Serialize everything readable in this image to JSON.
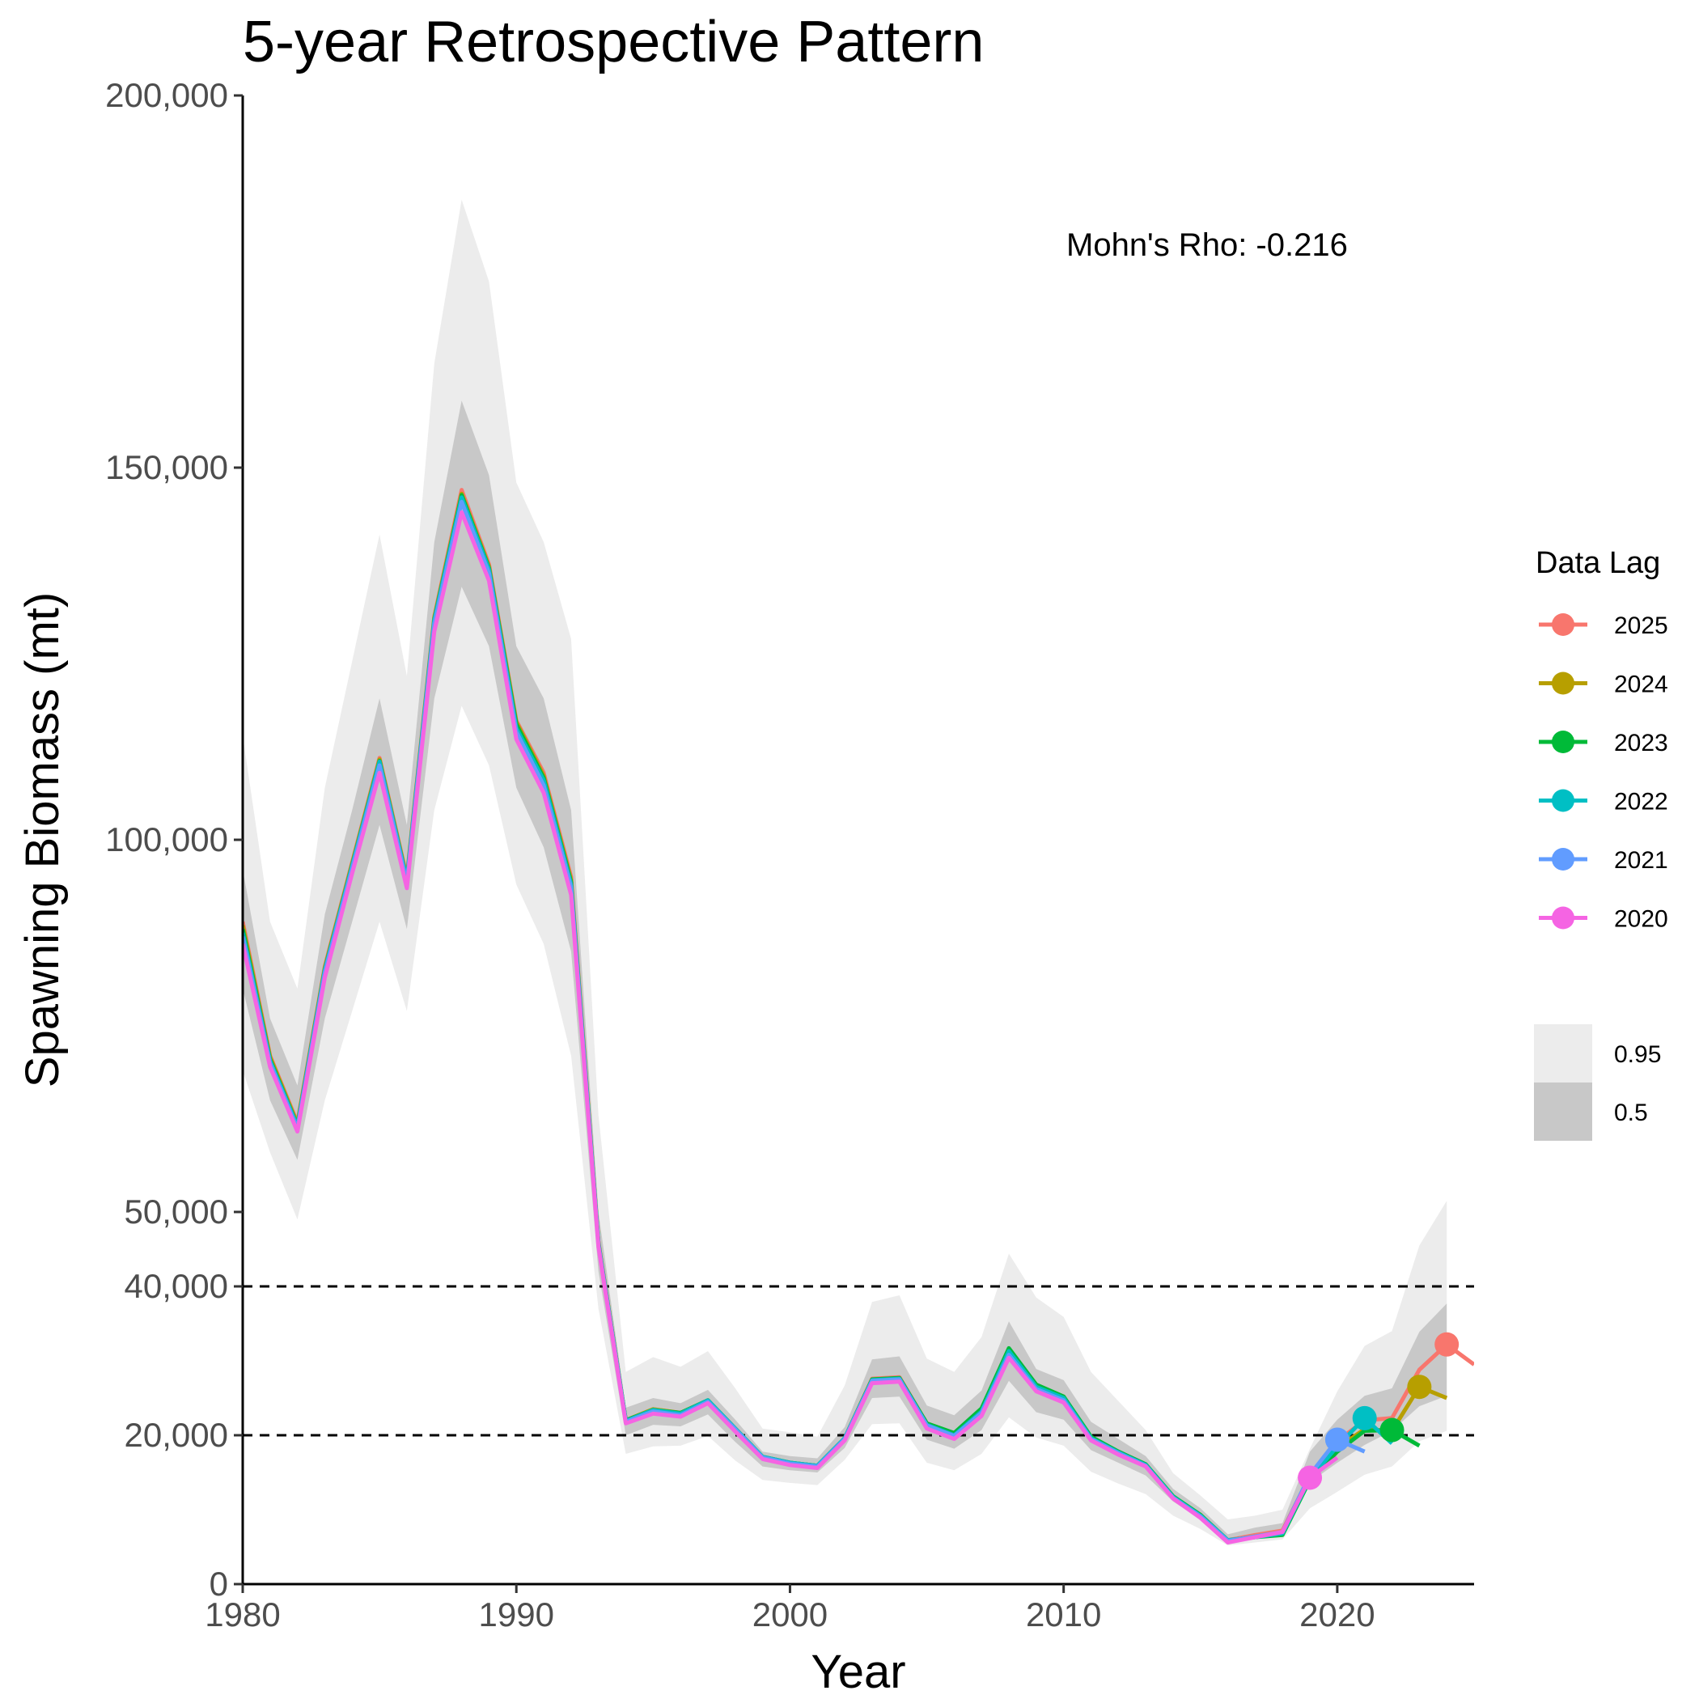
{
  "chart_data": {
    "type": "line",
    "title": "5-year Retrospective Pattern",
    "xlabel": "Year",
    "ylabel": "Spawning Biomass (mt)",
    "xlim": [
      1980,
      2025
    ],
    "ylim": [
      0,
      200000
    ],
    "x_ticks": [
      1980,
      1990,
      2000,
      2010,
      2020
    ],
    "x_tick_labels": [
      "1980",
      "1990",
      "2000",
      "2010",
      "2020"
    ],
    "y_ticks": [
      0,
      20000,
      40000,
      50000,
      100000,
      150000,
      200000
    ],
    "y_tick_labels": [
      "0",
      "20,000",
      "40,000",
      "50,000",
      "100,000",
      "150,000",
      "200,000"
    ],
    "reference_lines": [
      20000,
      40000
    ],
    "annotation": "Mohn's Rho: -0.216",
    "legend": {
      "title": "Data Lag",
      "band_labels": [
        "0.95",
        "0.5"
      ]
    },
    "band_colors": {
      "0.95": "#ececec",
      "0.5": "#c8c8c8"
    },
    "band_years": [
      1980,
      1981,
      1982,
      1983,
      1984,
      1985,
      1986,
      1987,
      1988,
      1989,
      1990,
      1991,
      1992,
      1993,
      1994,
      1995,
      1996,
      1997,
      1998,
      1999,
      2000,
      2001,
      2002,
      2003,
      2004,
      2005,
      2006,
      2007,
      2008,
      2009,
      2010,
      2011,
      2012,
      2013,
      2014,
      2015,
      2016,
      2017,
      2018,
      2019,
      2020,
      2021,
      2022,
      2023,
      2024
    ],
    "band_95_lower": [
      69000,
      58000,
      49000,
      65000,
      77000,
      89000,
      77000,
      104000,
      118000,
      110000,
      94000,
      86000,
      71000,
      37000,
      17500,
      18500,
      18600,
      19900,
      16600,
      14000,
      13600,
      13300,
      16700,
      21500,
      21600,
      16300,
      15300,
      17500,
      22400,
      19700,
      18600,
      15100,
      13500,
      12100,
      9200,
      7400,
      5200,
      5600,
      6000,
      10200,
      12400,
      14700,
      15800,
      19200,
      20600
    ],
    "band_95_upper": [
      114000,
      89000,
      80000,
      107000,
      124000,
      141000,
      122000,
      164000,
      186000,
      175000,
      148000,
      140000,
      127000,
      63000,
      28500,
      30500,
      29200,
      31300,
      26300,
      20900,
      20400,
      19800,
      26700,
      37900,
      38800,
      30300,
      28500,
      33200,
      44400,
      38500,
      35900,
      28500,
      24600,
      20700,
      14900,
      11900,
      8700,
      9200,
      10000,
      18200,
      25900,
      32000,
      34000,
      45500,
      51500
    ],
    "band_50_lower": [
      80000,
      65000,
      57000,
      76000,
      89000,
      102000,
      88000,
      119000,
      134000,
      126000,
      107000,
      99000,
      85000,
      42000,
      20000,
      21400,
      21200,
      22800,
      19100,
      15800,
      15300,
      15000,
      18300,
      25000,
      25200,
      19400,
      18200,
      20700,
      27300,
      23100,
      22100,
      18000,
      16300,
      14600,
      11100,
      8700,
      6000,
      6600,
      7100,
      13700,
      16300,
      18700,
      20600,
      23900,
      25300
    ],
    "band_50_upper": [
      96000,
      76000,
      67000,
      90000,
      104000,
      119000,
      102000,
      140000,
      159000,
      149000,
      126000,
      119000,
      104000,
      50000,
      23700,
      25000,
      24300,
      26100,
      22100,
      17800,
      17200,
      16900,
      21100,
      30200,
      30600,
      24000,
      22700,
      26000,
      35300,
      28900,
      27400,
      21800,
      19500,
      17200,
      12800,
      10200,
      6700,
      7600,
      8200,
      17800,
      22100,
      25300,
      26300,
      33900,
      37700
    ],
    "series": [
      {
        "name": "2025",
        "color": "#F8766D",
        "x": [
          1980,
          1981,
          1982,
          1983,
          1984,
          1985,
          1986,
          1987,
          1988,
          1989,
          1990,
          1991,
          1992,
          1993,
          1994,
          1995,
          1996,
          1997,
          1998,
          1999,
          2000,
          2001,
          2002,
          2003,
          2004,
          2005,
          2006,
          2007,
          2008,
          2009,
          2010,
          2011,
          2012,
          2013,
          2014,
          2015,
          2016,
          2017,
          2018,
          2019,
          2020,
          2021,
          2022,
          2023,
          2024,
          2025
        ],
        "y": [
          89000,
          71000,
          62000,
          83000,
          97000,
          111000,
          95000,
          130000,
          147000,
          137000,
          116000,
          109000,
          95000,
          46000,
          22000,
          23500,
          23000,
          24700,
          20900,
          17100,
          16300,
          15900,
          19600,
          27600,
          27800,
          21600,
          20200,
          23300,
          31100,
          26400,
          24900,
          19700,
          17800,
          16100,
          11700,
          9300,
          5900,
          6600,
          7200,
          14600,
          19200,
          22000,
          22300,
          28800,
          32200,
          29500
        ],
        "marker_year": 2024,
        "marker_value": 32200
      },
      {
        "name": "2024",
        "color": "#B79F00",
        "x": [
          1980,
          1981,
          1982,
          1983,
          1984,
          1985,
          1986,
          1987,
          1988,
          1989,
          1990,
          1991,
          1992,
          1993,
          1994,
          1995,
          1996,
          1997,
          1998,
          1999,
          2000,
          2001,
          2002,
          2003,
          2004,
          2005,
          2006,
          2007,
          2008,
          2009,
          2010,
          2011,
          2012,
          2013,
          2014,
          2015,
          2016,
          2017,
          2018,
          2019,
          2020,
          2021,
          2022,
          2023,
          2024
        ],
        "y": [
          88500,
          70800,
          61800,
          82800,
          96800,
          110800,
          94800,
          129800,
          146500,
          136700,
          115800,
          108600,
          94600,
          45900,
          22000,
          23500,
          23000,
          24700,
          20900,
          17100,
          16300,
          15900,
          19600,
          27500,
          27700,
          21500,
          20100,
          23200,
          31000,
          26300,
          24800,
          19600,
          17700,
          16000,
          11700,
          9300,
          5800,
          6400,
          6900,
          14300,
          18300,
          20800,
          20600,
          26500,
          25000
        ],
        "marker_year": 2023,
        "marker_value": 26500
      },
      {
        "name": "2023",
        "color": "#00BA38",
        "x": [
          1980,
          1981,
          1982,
          1983,
          1984,
          1985,
          1986,
          1987,
          1988,
          1989,
          1990,
          1991,
          1992,
          1993,
          1994,
          1995,
          1996,
          1997,
          1998,
          1999,
          2000,
          2001,
          2002,
          2003,
          2004,
          2005,
          2006,
          2007,
          2008,
          2009,
          2010,
          2011,
          2012,
          2013,
          2014,
          2015,
          2016,
          2017,
          2018,
          2019,
          2020,
          2021,
          2022,
          2023
        ],
        "y": [
          88000,
          70500,
          61600,
          82600,
          96600,
          110600,
          94600,
          129600,
          146300,
          136500,
          115500,
          108300,
          94300,
          45800,
          22000,
          23400,
          23000,
          24700,
          20900,
          17100,
          16300,
          15900,
          19600,
          27500,
          27700,
          21600,
          20300,
          23600,
          31700,
          26800,
          25200,
          19800,
          17800,
          16100,
          11800,
          9300,
          5900,
          6300,
          6600,
          14000,
          17800,
          20600,
          20700,
          18600
        ],
        "marker_year": 2022,
        "marker_value": 20700
      },
      {
        "name": "2022",
        "color": "#00BFC4",
        "x": [
          1980,
          1981,
          1982,
          1983,
          1984,
          1985,
          1986,
          1987,
          1988,
          1989,
          1990,
          1991,
          1992,
          1993,
          1994,
          1995,
          1996,
          1997,
          1998,
          1999,
          2000,
          2001,
          2002,
          2003,
          2004,
          2005,
          2006,
          2007,
          2008,
          2009,
          2010,
          2011,
          2012,
          2013,
          2014,
          2015,
          2016,
          2017,
          2018,
          2019,
          2020,
          2021,
          2022
        ],
        "y": [
          87500,
          70300,
          61500,
          82500,
          96500,
          110500,
          94500,
          129500,
          146000,
          136300,
          115000,
          108000,
          94000,
          45700,
          21900,
          23400,
          22900,
          24700,
          20900,
          17100,
          16300,
          15900,
          19600,
          27400,
          27600,
          21400,
          20000,
          23200,
          31300,
          26500,
          25000,
          19600,
          17700,
          16000,
          11700,
          9200,
          5900,
          6300,
          6800,
          14200,
          18500,
          22300,
          18900
        ],
        "marker_year": 2021,
        "marker_value": 22300
      },
      {
        "name": "2021",
        "color": "#619CFF",
        "x": [
          1980,
          1981,
          1982,
          1983,
          1984,
          1985,
          1986,
          1987,
          1988,
          1989,
          1990,
          1991,
          1992,
          1993,
          1994,
          1995,
          1996,
          1997,
          1998,
          1999,
          2000,
          2001,
          2002,
          2003,
          2004,
          2005,
          2006,
          2007,
          2008,
          2009,
          2010,
          2011,
          2012,
          2013,
          2014,
          2015,
          2016,
          2017,
          2018,
          2019,
          2020,
          2021
        ],
        "y": [
          87000,
          70000,
          61200,
          82200,
          96200,
          110000,
          94200,
          129000,
          145400,
          135800,
          114500,
          107300,
          93600,
          45600,
          21800,
          23200,
          22700,
          24500,
          20800,
          17000,
          16200,
          15800,
          19500,
          27300,
          27500,
          21300,
          19900,
          23000,
          30800,
          26200,
          24700,
          19500,
          17600,
          15900,
          11600,
          9100,
          5800,
          6400,
          7000,
          14700,
          19400,
          17800
        ],
        "marker_year": 2020,
        "marker_value": 19400
      },
      {
        "name": "2020",
        "color": "#F564E3",
        "x": [
          1980,
          1981,
          1982,
          1983,
          1984,
          1985,
          1986,
          1987,
          1988,
          1989,
          1990,
          1991,
          1992,
          1993,
          1994,
          1995,
          1996,
          1997,
          1998,
          1999,
          2000,
          2001,
          2002,
          2003,
          2004,
          2005,
          2006,
          2007,
          2008,
          2009,
          2010,
          2011,
          2012,
          2013,
          2014,
          2015,
          2016,
          2017,
          2018,
          2019,
          2020
        ],
        "y": [
          86000,
          69500,
          60800,
          81500,
          95500,
          109000,
          93500,
          128000,
          144000,
          134800,
          113500,
          106300,
          92600,
          45300,
          21600,
          22900,
          22500,
          24300,
          20500,
          16800,
          16000,
          15600,
          19300,
          27000,
          27200,
          20900,
          19500,
          22600,
          30400,
          25900,
          24400,
          19300,
          17400,
          15800,
          11500,
          8900,
          5600,
          6300,
          7000,
          14300,
          17000
        ],
        "marker_year": 2019,
        "marker_value": 14300
      }
    ]
  }
}
